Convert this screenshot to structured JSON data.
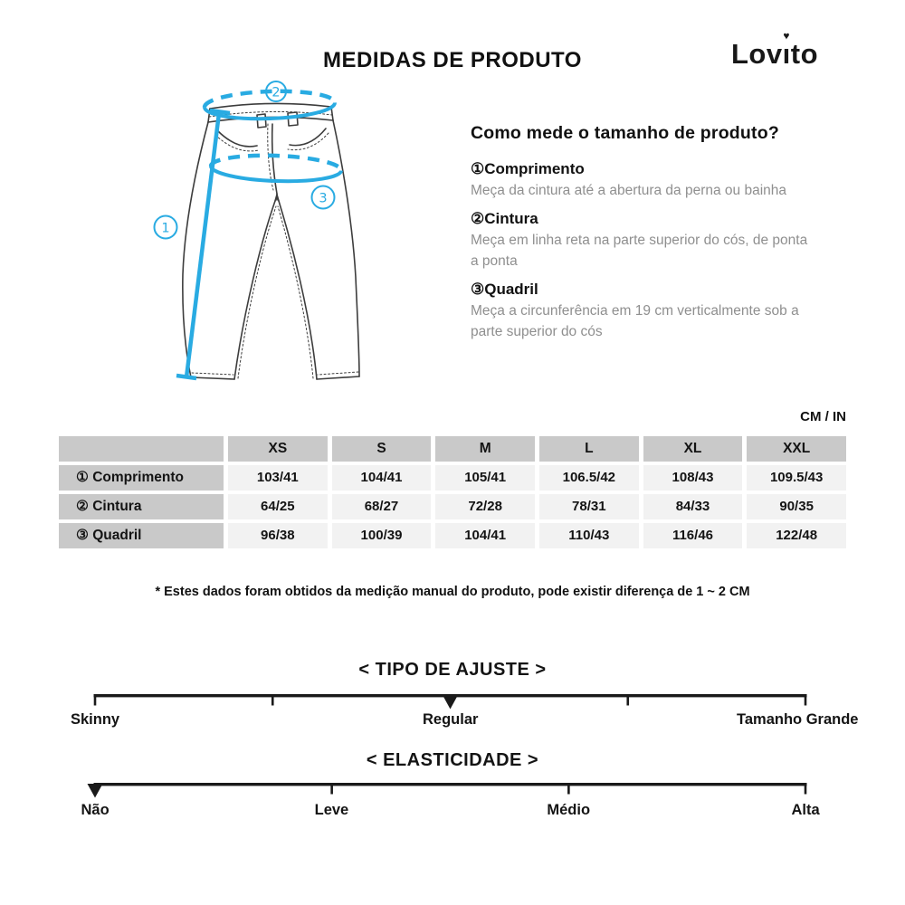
{
  "page": {
    "title": "MEDIDAS DE PRODUTO",
    "unit_label": "CM / IN",
    "footnote": "* Estes dados foram obtidos da medição manual do produto, pode existir diferença de 1 ~ 2 CM"
  },
  "brand": {
    "name": "Lovito",
    "pre": "Lov",
    "i_char": "ı",
    "heart": "♥",
    "post": "to"
  },
  "diagram": {
    "marker_1": "1",
    "marker_2": "2",
    "marker_3": "3",
    "accent_color": "#29abe2"
  },
  "how_to": {
    "heading": "Como mede o tamanho de produto?",
    "items": [
      {
        "label": "①Comprimento",
        "text": "Meça da cintura até a abertura da perna ou bainha"
      },
      {
        "label": "②Cintura",
        "text": "Meça em linha reta na parte superior do cós, de ponta a ponta"
      },
      {
        "label": "③Quadril",
        "text": "Meça a circunferência em 19 cm verticalmente sob a parte superior do cós"
      }
    ]
  },
  "size_table": {
    "columns": [
      "XS",
      "S",
      "M",
      "L",
      "XL",
      "XXL"
    ],
    "rows": [
      {
        "label": "① Comprimento",
        "values": [
          "103/41",
          "104/41",
          "105/41",
          "106.5/42",
          "108/43",
          "109.5/43"
        ]
      },
      {
        "label": "② Cintura",
        "values": [
          "64/25",
          "68/27",
          "72/28",
          "78/31",
          "84/33",
          "90/35"
        ]
      },
      {
        "label": "③ Quadril",
        "values": [
          "96/38",
          "100/39",
          "104/41",
          "110/43",
          "116/46",
          "122/48"
        ]
      }
    ]
  },
  "scales": [
    {
      "id": "fit",
      "heading": "< TIPO DE AJUSTE >",
      "tick_pcts": [
        0,
        25,
        50,
        75,
        100
      ],
      "marker_pct": 50,
      "selected": "Regular",
      "labels": [
        {
          "text": "Skinny",
          "pct": 0
        },
        {
          "text": "Regular",
          "pct": 50
        },
        {
          "text": "Tamanho Grande",
          "pct": 100
        }
      ]
    },
    {
      "id": "stretch",
      "heading": "< ELASTICIDADE >",
      "tick_pcts": [
        0,
        33.33,
        66.67,
        100
      ],
      "marker_pct": 0,
      "selected": "Não",
      "labels": [
        {
          "text": "Não",
          "pct": 0
        },
        {
          "text": "Leve",
          "pct": 33.33
        },
        {
          "text": "Médio",
          "pct": 66.67
        },
        {
          "text": "Alta",
          "pct": 100
        }
      ]
    }
  ],
  "colors": {
    "accent_cyan": "#29abe2",
    "table_header_bg": "#c9c9c9",
    "table_cell_bg": "#f2f2f2",
    "text_primary": "#141414",
    "text_secondary": "#8f8f8f"
  }
}
